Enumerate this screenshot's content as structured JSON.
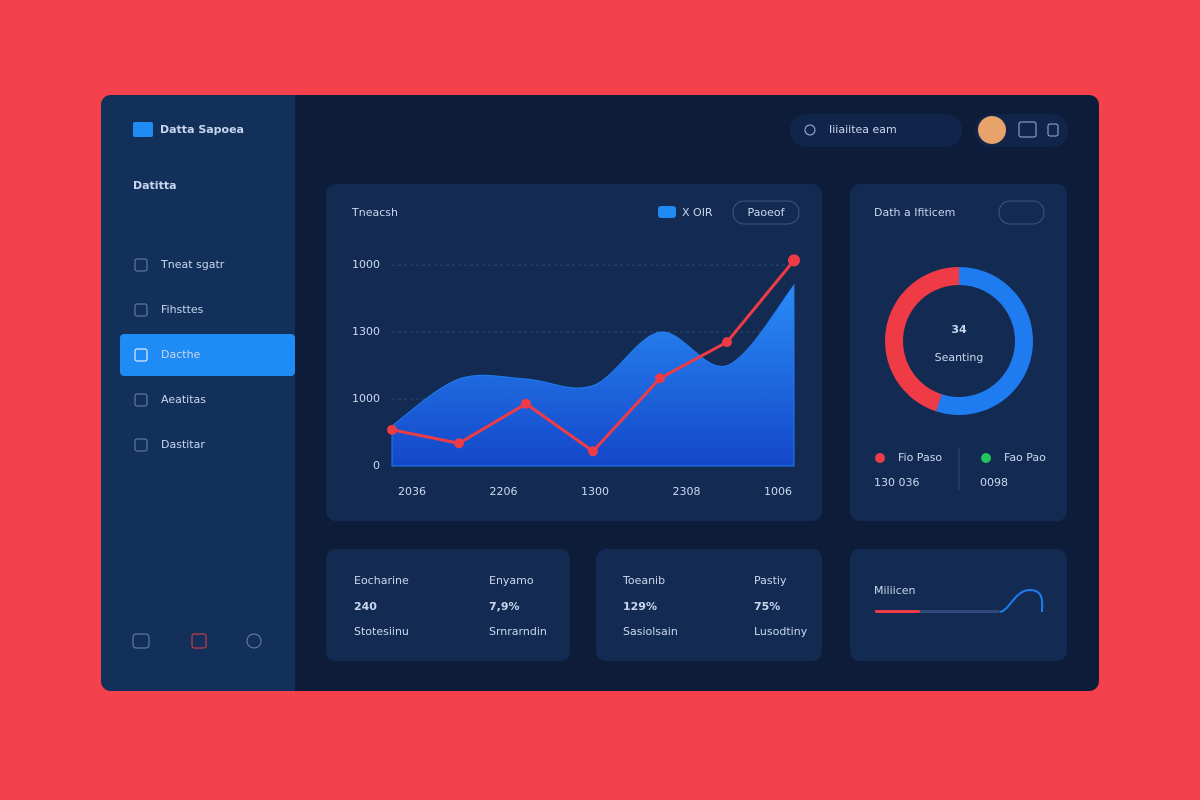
{
  "sidebar": {
    "brand": "Datta Sapoea",
    "heading": "Datitta",
    "menu": [
      "Tneat sgatr",
      "Fihsttes",
      "Dacthe",
      "Aeatitas",
      "Dastitar"
    ],
    "active": 2
  },
  "search": {
    "placeholder": "Iiiaiitea eam"
  },
  "main_chart": {
    "type": "line",
    "title": "Tneacsh",
    "badge": "X OIR",
    "button": "Paoeof",
    "ylim": [
      0,
      3.3
    ],
    "yticks": [
      {
        "value": 0,
        "label": "0"
      },
      {
        "value": 1,
        "label": "1000"
      },
      {
        "value": 2,
        "label": "1300"
      },
      {
        "value": 3,
        "label": "1000"
      }
    ],
    "x_labels": [
      "2036",
      "2206",
      "1300",
      "2308",
      "1006"
    ],
    "area": {
      "color": "#1f7cf0",
      "values": [
        0.6,
        1.3,
        1.3,
        1.2,
        2.0,
        1.5,
        2.7
      ]
    },
    "line": {
      "color": "#ef3b45",
      "values": [
        0.54,
        0.34,
        0.93,
        0.22,
        1.31,
        1.85,
        3.07
      ]
    }
  },
  "donut": {
    "type": "pie",
    "title": "Dath a Ifiticem",
    "value_label": "34",
    "sublabel": "Seanting",
    "segments": [
      {
        "color": "#1f7cf0",
        "value": 55
      },
      {
        "color": "#ef3b45",
        "value": 45
      }
    ],
    "legend": [
      {
        "label": "Fio Paso",
        "value": "130 036",
        "color": "#ef3b45"
      },
      {
        "label": "Fao Pao",
        "value": "0098",
        "color": "#22c55e"
      }
    ]
  },
  "stats": [
    {
      "label": "Eocharine",
      "value": "240",
      "sub": "Stotesiinu"
    },
    {
      "label": "Enyamo",
      "value": "7,9%",
      "sub": "Srnrarndin"
    },
    {
      "label": "Toeanib",
      "value": "129%",
      "sub": "Sasiolsain"
    },
    {
      "label": "Pastiy",
      "value": "75%",
      "sub": "Lusodtiny"
    }
  ],
  "progress": {
    "label": "Miliicen",
    "value": 36,
    "color": "#ef3b45"
  }
}
